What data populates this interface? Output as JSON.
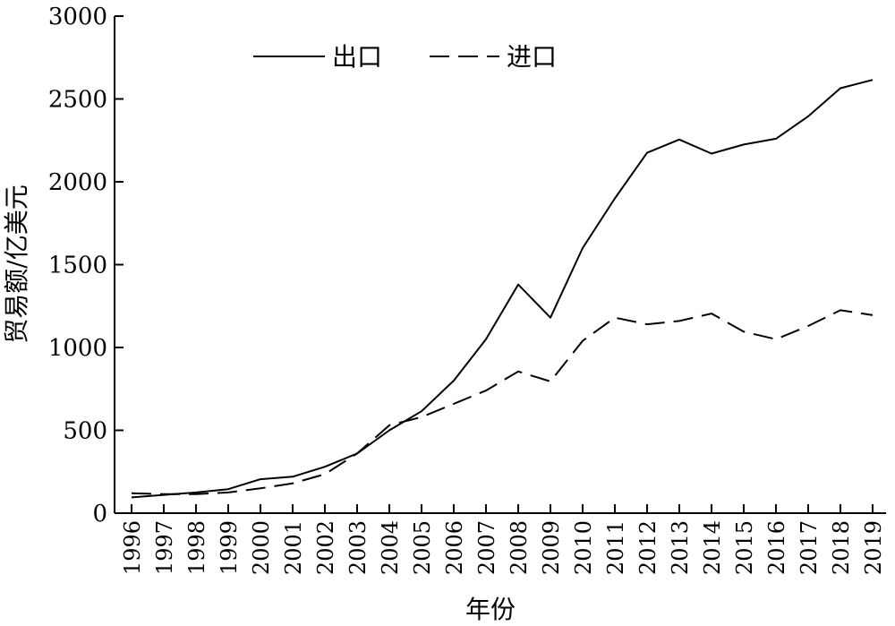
{
  "chart_data": {
    "type": "line",
    "title": "",
    "xlabel": "年份",
    "ylabel": "贸易额/亿美元",
    "ylim": [
      0,
      3000
    ],
    "yticks": [
      0,
      500,
      1000,
      1500,
      2000,
      2500,
      3000
    ],
    "grid": false,
    "legend_position": "top-left",
    "categories": [
      "1996",
      "1997",
      "1998",
      "1999",
      "2000",
      "2001",
      "2002",
      "2003",
      "2004",
      "2005",
      "2006",
      "2007",
      "2008",
      "2009",
      "2010",
      "2011",
      "2012",
      "2013",
      "2014",
      "2015",
      "2016",
      "2017",
      "2018",
      "2019"
    ],
    "series": [
      {
        "name": "出口",
        "style": "solid",
        "color": "#000000",
        "values": [
          95,
          110,
          125,
          145,
          205,
          220,
          280,
          360,
          500,
          615,
          800,
          1050,
          1380,
          1180,
          1600,
          1900,
          2175,
          2255,
          2170,
          2225,
          2260,
          2395,
          2565,
          2615
        ]
      },
      {
        "name": "进口",
        "style": "dashed",
        "color": "#000000",
        "values": [
          120,
          115,
          115,
          125,
          150,
          180,
          235,
          360,
          530,
          580,
          660,
          740,
          855,
          795,
          1040,
          1180,
          1140,
          1160,
          1205,
          1095,
          1050,
          1130,
          1225,
          1195
        ]
      }
    ]
  }
}
